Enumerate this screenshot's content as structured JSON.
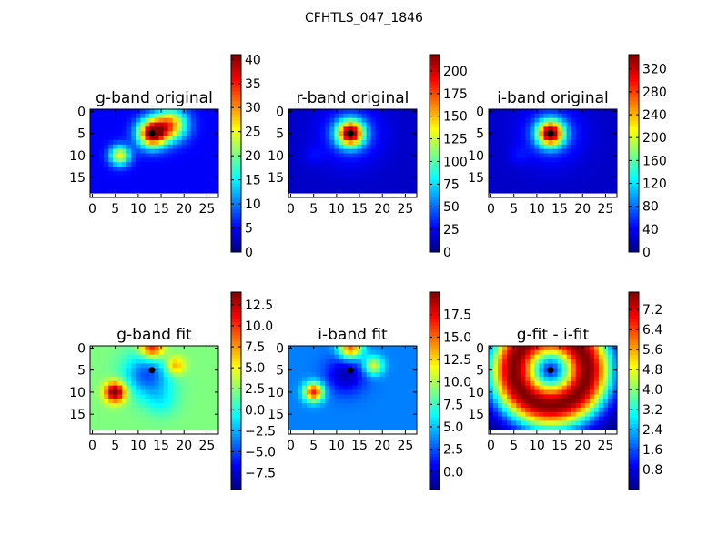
{
  "figure": {
    "title": "CFHTLS_047_1846"
  },
  "chart_data": [
    {
      "type": "heatmap",
      "title": "g-band original",
      "xticks": [
        0,
        5,
        10,
        15,
        20,
        25
      ],
      "yticks": [
        0,
        5,
        10,
        15
      ],
      "xlim": [
        -0.5,
        27.5
      ],
      "ylim": [
        -0.5,
        19.5
      ],
      "grid": false,
      "marker": {
        "x": 13,
        "y": 5
      },
      "colorbar": {
        "vmin": 0,
        "vmax": 41,
        "ticks": [
          "0",
          "5",
          "10",
          "15",
          "20",
          "25",
          "30",
          "35",
          "40"
        ],
        "values": [
          0,
          5,
          10,
          15,
          20,
          25,
          30,
          35,
          40
        ]
      },
      "blobs": [
        {
          "x": 13,
          "y": 5,
          "s": 2.2,
          "a": 0.85
        },
        {
          "x": 17,
          "y": 3,
          "s": 2.5,
          "a": 0.6
        },
        {
          "x": 6,
          "y": 10,
          "s": 1.6,
          "a": 0.5
        }
      ],
      "base": 0.12
    },
    {
      "type": "heatmap",
      "title": "r-band original",
      "xticks": [
        0,
        5,
        10,
        15,
        20,
        25
      ],
      "yticks": [
        0,
        5,
        10,
        15
      ],
      "xlim": [
        -0.5,
        27.5
      ],
      "ylim": [
        -0.5,
        19.5
      ],
      "grid": false,
      "marker": {
        "x": 13,
        "y": 5
      },
      "colorbar": {
        "vmin": 0,
        "vmax": 218,
        "ticks": [
          "0",
          "25",
          "50",
          "75",
          "100",
          "125",
          "150",
          "175",
          "200"
        ],
        "values": [
          0,
          25,
          50,
          75,
          100,
          125,
          150,
          175,
          200
        ]
      },
      "blobs": [
        {
          "x": 13,
          "y": 5,
          "s": 2.0,
          "a": 0.85
        },
        {
          "x": 13,
          "y": 5,
          "s": 4.5,
          "a": 0.15
        },
        {
          "x": 5,
          "y": 10,
          "s": 1.5,
          "a": 0.05
        }
      ],
      "base": 0.07
    },
    {
      "type": "heatmap",
      "title": "i-band original",
      "xticks": [
        0,
        5,
        10,
        15,
        20,
        25
      ],
      "yticks": [
        0,
        5,
        10,
        15
      ],
      "xlim": [
        -0.5,
        27.5
      ],
      "ylim": [
        -0.5,
        19.5
      ],
      "grid": false,
      "marker": {
        "x": 13,
        "y": 5
      },
      "colorbar": {
        "vmin": 0,
        "vmax": 345,
        "ticks": [
          "0",
          "40",
          "80",
          "120",
          "160",
          "200",
          "240",
          "280",
          "320"
        ],
        "values": [
          0,
          40,
          80,
          120,
          160,
          200,
          240,
          280,
          320
        ]
      },
      "blobs": [
        {
          "x": 13,
          "y": 5,
          "s": 2.0,
          "a": 0.85
        },
        {
          "x": 13,
          "y": 5,
          "s": 4.5,
          "a": 0.15
        },
        {
          "x": 6,
          "y": 10,
          "s": 1.5,
          "a": 0.05
        }
      ],
      "base": 0.07
    },
    {
      "type": "heatmap",
      "title": "g-band fit",
      "xticks": [
        0,
        5,
        10,
        15,
        20,
        25
      ],
      "yticks": [
        0,
        5,
        10,
        15
      ],
      "xlim": [
        -0.5,
        27.5
      ],
      "ylim": [
        -0.5,
        19.5
      ],
      "grid": false,
      "marker": {
        "x": 13,
        "y": 5
      },
      "colorbar": {
        "vmin": -9.5,
        "vmax": 14,
        "ticks": [
          "−7.5",
          "−5.0",
          "−2.5",
          "0.0",
          "2.5",
          "5.0",
          "7.5",
          "10.0",
          "12.5"
        ],
        "values": [
          -7.5,
          -5,
          -2.5,
          0,
          2.5,
          5,
          7.5,
          10,
          12.5
        ]
      },
      "blobs": [
        {
          "x": 5,
          "y": 10,
          "s": 1.6,
          "a": 0.55
        },
        {
          "x": 13,
          "y": 0,
          "s": 1.8,
          "a": 0.4
        },
        {
          "x": 18,
          "y": 4,
          "s": 1.5,
          "a": 0.25
        },
        {
          "x": 12,
          "y": 6,
          "s": 3.5,
          "a": -0.3
        },
        {
          "x": 15,
          "y": 12,
          "s": 2.5,
          "a": -0.1
        }
      ],
      "base": 0.5
    },
    {
      "type": "heatmap",
      "title": "i-band fit",
      "xticks": [
        0,
        5,
        10,
        15,
        20,
        25
      ],
      "yticks": [
        0,
        5,
        10,
        15
      ],
      "xlim": [
        -0.5,
        27.5
      ],
      "ylim": [
        -0.5,
        19.5
      ],
      "grid": false,
      "marker": {
        "x": 13,
        "y": 5
      },
      "colorbar": {
        "vmin": -2,
        "vmax": 20,
        "ticks": [
          "0.0",
          "2.5",
          "5.0",
          "7.5",
          "10.0",
          "12.5",
          "15.0",
          "17.5"
        ],
        "values": [
          0,
          2.5,
          5,
          7.5,
          10,
          12.5,
          15,
          17.5
        ]
      },
      "blobs": [
        {
          "x": 5,
          "y": 10,
          "s": 1.5,
          "a": 0.6
        },
        {
          "x": 13,
          "y": 0,
          "s": 1.8,
          "a": 0.55
        },
        {
          "x": 18,
          "y": 4,
          "s": 1.5,
          "a": 0.35
        },
        {
          "x": 12,
          "y": 6,
          "s": 3.0,
          "a": -0.2
        }
      ],
      "base": 0.25
    },
    {
      "type": "heatmap",
      "title": "g-fit - i-fit",
      "xticks": [
        0,
        5,
        10,
        15,
        20,
        25
      ],
      "yticks": [
        0,
        5,
        10,
        15
      ],
      "xlim": [
        -0.5,
        27.5
      ],
      "ylim": [
        -0.5,
        19.5
      ],
      "grid": false,
      "marker": {
        "x": 13,
        "y": 5
      },
      "colorbar": {
        "vmin": 0,
        "vmax": 7.9,
        "ticks": [
          "0.8",
          "1.6",
          "2.4",
          "3.2",
          "4.0",
          "4.8",
          "5.6",
          "6.4",
          "7.2"
        ],
        "values": [
          0.8,
          1.6,
          2.4,
          3.2,
          4.0,
          4.8,
          5.6,
          6.4,
          7.2
        ]
      },
      "ring": {
        "x": 13,
        "y": 5,
        "r": 8,
        "w": 5.5
      }
    }
  ]
}
